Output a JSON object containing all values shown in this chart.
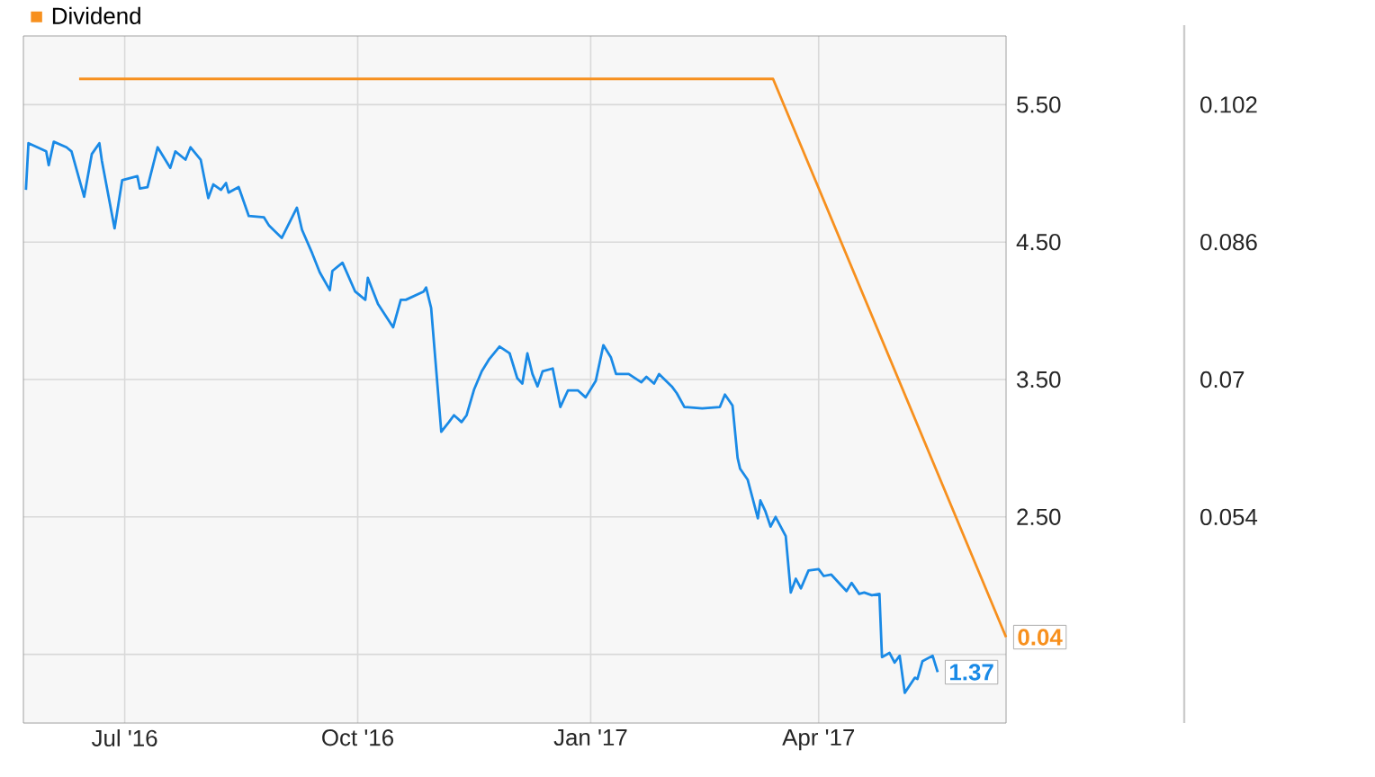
{
  "chart_data": {
    "type": "line",
    "xlim": [
      "2016-05-22",
      "2017-06-14"
    ],
    "xticks": [
      {
        "value": "2016-07-01",
        "label": "Jul '16"
      },
      {
        "value": "2016-10-01",
        "label": "Oct '16"
      },
      {
        "value": "2017-01-01",
        "label": "Jan '17"
      },
      {
        "value": "2017-04-01",
        "label": "Apr '17"
      }
    ],
    "ylim": [
      1,
      6
    ],
    "yticks": [
      {
        "value": 1.5,
        "label": null
      },
      {
        "value": 2.5,
        "label": "2.50"
      },
      {
        "value": 3.5,
        "label": "3.50"
      },
      {
        "value": 4.5,
        "label": "4.50"
      },
      {
        "value": 5.5,
        "label": "5.50"
      }
    ],
    "y2lim": [
      0.03,
      0.11
    ],
    "y2ticks": [
      0.054,
      0.07,
      0.086,
      0.102
    ],
    "grid": true,
    "legend": "top left",
    "series": [
      {
        "color": "#1a8ae6",
        "x": [
          "2016-05-23",
          "2016-05-24",
          "2016-05-31",
          "2016-06-01",
          "2016-06-03",
          "2016-06-08",
          "2016-06-10",
          "2016-06-15",
          "2016-06-18",
          "2016-06-21",
          "2016-06-22",
          "2016-06-27",
          "2016-06-30",
          "2016-07-06",
          "2016-07-07",
          "2016-07-10",
          "2016-07-14",
          "2016-07-19",
          "2016-07-21",
          "2016-07-25",
          "2016-07-27",
          "2016-07-31",
          "2016-08-03",
          "2016-08-05",
          "2016-08-08",
          "2016-08-10",
          "2016-08-11",
          "2016-08-15",
          "2016-08-19",
          "2016-08-25",
          "2016-08-27",
          "2016-09-01",
          "2016-09-07",
          "2016-09-09",
          "2016-09-13",
          "2016-09-16",
          "2016-09-20",
          "2016-09-21",
          "2016-09-25",
          "2016-09-30",
          "2016-10-04",
          "2016-10-05",
          "2016-10-09",
          "2016-10-15",
          "2016-10-18",
          "2016-10-20",
          "2016-10-27",
          "2016-10-28",
          "2016-10-30",
          "2016-11-03",
          "2016-11-06",
          "2016-11-08",
          "2016-11-11",
          "2016-11-13",
          "2016-11-16",
          "2016-11-19",
          "2016-11-22",
          "2016-11-26",
          "2016-11-30",
          "2016-12-03",
          "2016-12-05",
          "2016-12-07",
          "2016-12-09",
          "2016-12-11",
          "2016-12-13",
          "2016-12-17",
          "2016-12-20",
          "2016-12-23",
          "2016-12-27",
          "2016-12-30",
          "2017-01-03",
          "2017-01-06",
          "2017-01-09",
          "2017-01-11",
          "2017-01-16",
          "2017-01-21",
          "2017-01-23",
          "2017-01-26",
          "2017-01-28",
          "2017-02-02",
          "2017-02-04",
          "2017-02-07",
          "2017-02-14",
          "2017-02-21",
          "2017-02-23",
          "2017-02-26",
          "2017-02-28",
          "2017-03-01",
          "2017-03-04",
          "2017-03-06",
          "2017-03-08",
          "2017-03-09",
          "2017-03-11",
          "2017-03-13",
          "2017-03-15",
          "2017-03-19",
          "2017-03-21",
          "2017-03-23",
          "2017-03-25",
          "2017-03-28",
          "2017-04-01",
          "2017-04-03",
          "2017-04-06",
          "2017-04-10",
          "2017-04-12",
          "2017-04-14",
          "2017-04-17",
          "2017-04-19",
          "2017-04-22",
          "2017-04-25",
          "2017-04-26",
          "2017-04-29",
          "2017-05-01",
          "2017-05-03",
          "2017-05-05",
          "2017-05-09",
          "2017-05-10",
          "2017-05-12",
          "2017-05-16",
          "2017-05-18"
        ],
        "values": [
          4.88,
          5.22,
          5.16,
          5.06,
          5.23,
          5.19,
          5.16,
          4.83,
          5.14,
          5.22,
          5.09,
          4.6,
          4.95,
          4.98,
          4.89,
          4.9,
          5.19,
          5.04,
          5.16,
          5.1,
          5.19,
          5.1,
          4.82,
          4.92,
          4.88,
          4.93,
          4.86,
          4.9,
          4.69,
          4.68,
          4.62,
          4.53,
          4.75,
          4.59,
          4.42,
          4.28,
          4.15,
          4.29,
          4.35,
          4.14,
          4.08,
          4.24,
          4.05,
          3.88,
          4.08,
          4.08,
          4.14,
          4.17,
          4.02,
          3.12,
          3.19,
          3.24,
          3.19,
          3.24,
          3.43,
          3.56,
          3.65,
          3.74,
          3.69,
          3.51,
          3.47,
          3.69,
          3.54,
          3.45,
          3.56,
          3.58,
          3.3,
          3.42,
          3.42,
          3.37,
          3.49,
          3.75,
          3.66,
          3.54,
          3.54,
          3.48,
          3.52,
          3.47,
          3.54,
          3.45,
          3.4,
          3.3,
          3.29,
          3.3,
          3.39,
          3.31,
          2.93,
          2.85,
          2.77,
          2.63,
          2.49,
          2.62,
          2.54,
          2.43,
          2.5,
          2.36,
          1.95,
          2.05,
          1.98,
          2.11,
          2.12,
          2.07,
          2.08,
          2.0,
          1.96,
          2.02,
          1.94,
          1.95,
          1.93,
          1.94,
          1.48,
          1.51,
          1.44,
          1.49,
          1.22,
          1.33,
          1.32,
          1.45,
          1.49,
          1.37
        ],
        "value_labels": [
          null,
          null,
          null,
          null,
          null,
          null,
          null,
          null,
          null,
          null,
          null,
          null,
          null,
          null,
          null,
          null,
          null,
          null,
          null,
          null,
          null,
          null,
          null,
          null,
          null,
          null,
          null,
          null,
          null,
          null,
          null,
          null,
          null,
          null,
          null,
          null,
          null,
          null,
          null,
          null,
          null,
          null,
          null,
          null,
          null,
          null,
          null,
          null,
          null,
          null,
          null,
          null,
          null,
          null,
          null,
          null,
          null,
          null,
          null,
          null,
          null,
          null,
          null,
          null,
          null,
          null,
          null,
          null,
          null,
          null,
          null,
          null,
          null,
          null,
          null,
          null,
          null,
          null,
          null,
          null,
          null,
          null,
          null,
          null,
          null,
          null,
          null,
          null,
          null,
          null,
          null,
          null,
          null,
          null,
          null,
          null,
          null,
          null,
          null,
          null,
          null,
          null,
          null,
          null,
          null,
          null,
          null,
          null,
          null,
          null,
          null,
          null,
          null,
          null,
          null,
          null,
          null,
          null,
          null,
          "1.37"
        ]
      },
      {
        "name": "Dividend",
        "color": "#f7901e",
        "axis": "y2",
        "x": [
          "2016-06-13",
          "2017-03-14",
          "2017-06-14"
        ],
        "values": [
          0.105,
          0.105,
          0.04
        ],
        "value_labels": [
          null,
          null,
          "0.04"
        ]
      }
    ]
  }
}
